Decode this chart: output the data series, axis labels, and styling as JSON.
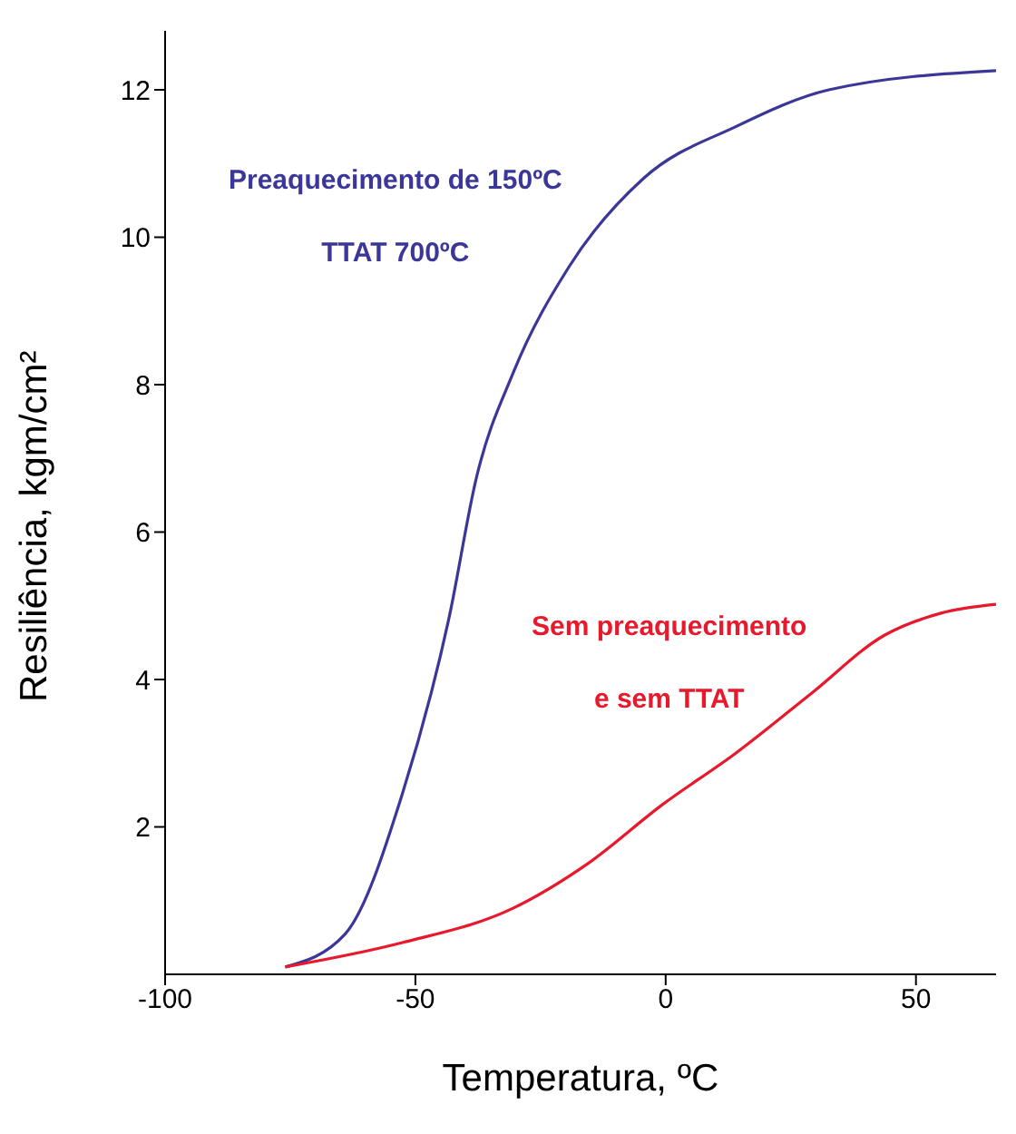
{
  "chart_data": {
    "type": "line",
    "xlabel": "Temperatura, ºC",
    "ylabel": "Resiliência, kgm/cm²",
    "xlim": [
      -100,
      66
    ],
    "xticks": [
      -100,
      -50,
      0,
      50
    ],
    "ylim": [
      0,
      12.8
    ],
    "yticks": [
      2,
      4,
      6,
      8,
      10,
      12
    ],
    "grid": false,
    "legend": false,
    "marker": "none",
    "line_style": "solid",
    "series": [
      {
        "name": "Preaquecimento de 150ºC\nTTAT 700ºC",
        "color": "#3b3799",
        "x": [
          -76,
          -64,
          -52.6,
          -43.3,
          -37.8,
          -30.4,
          -19.3,
          -4.4,
          14,
          32.6,
          66
        ],
        "values": [
          0.1,
          0.55,
          2.45,
          4.83,
          6.74,
          8.17,
          9.6,
          10.8,
          11.5,
          12.0,
          12.26
        ]
      },
      {
        "name": "Sem preaquecimento\ne sem TTAT",
        "color": "#e8192c",
        "x": [
          -76,
          -52.6,
          -30.4,
          -15.6,
          -0.7,
          14,
          28.9,
          43.7,
          55,
          66
        ],
        "values": [
          0.1,
          0.43,
          0.9,
          1.5,
          2.3,
          3.0,
          3.8,
          4.6,
          4.9,
          5.02
        ]
      }
    ]
  }
}
